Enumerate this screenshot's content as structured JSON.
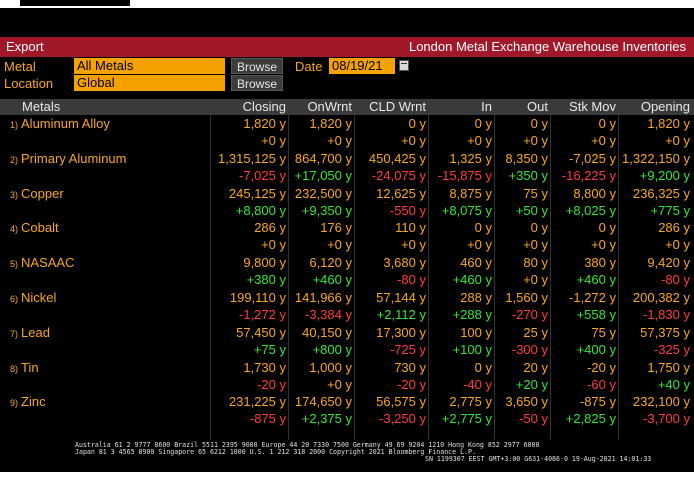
{
  "titlebar": {
    "export_label": "Export",
    "title": "London Metal Exchange Warehouse Inventories"
  },
  "filters": {
    "metal_label": "Metal",
    "metal_value": "All Metals",
    "location_label": "Location",
    "location_value": "Global",
    "browse_label": "Browse",
    "date_label": "Date",
    "date_value": "08/19/21"
  },
  "columns": {
    "metals": "Metals",
    "closing": "Closing",
    "onwrnt": "OnWrnt",
    "cld": "CLD Wrnt",
    "in": "In",
    "out": "Out",
    "stkmov": "Stk Mov",
    "opening": "Opening"
  },
  "rows": [
    {
      "num": "1)",
      "name": "Aluminum Alloy",
      "v": [
        "1,820 y",
        "1,820 y",
        "0 y",
        "0 y",
        "0 y",
        "0 y",
        "1,820 y"
      ],
      "c": [
        "+0 y",
        "+0 y",
        "+0 y",
        "+0 y",
        "+0 y",
        "+0 y",
        "+0 y"
      ],
      "cc": [
        "amber",
        "amber",
        "amber",
        "amber",
        "amber",
        "amber",
        "amber"
      ]
    },
    {
      "num": "2)",
      "name": "Primary Aluminum",
      "v": [
        "1,315,125 y",
        "864,700 y",
        "450,425 y",
        "1,325 y",
        "8,350 y",
        "-7,025 y",
        "1,322,150 y"
      ],
      "c": [
        "-7,025 y",
        "+17,050 y",
        "-24,075 y",
        "-15,875 y",
        "+350 y",
        "-16,225 y",
        "+9,200 y"
      ],
      "cc": [
        "red",
        "green",
        "red",
        "red",
        "green",
        "red",
        "green"
      ]
    },
    {
      "num": "3)",
      "name": "Copper",
      "v": [
        "245,125 y",
        "232,500 y",
        "12,625 y",
        "8,875 y",
        "75 y",
        "8,800 y",
        "236,325 y"
      ],
      "c": [
        "+8,800 y",
        "+9,350 y",
        "-550 y",
        "+8,075 y",
        "+50 y",
        "+8,025 y",
        "+775 y"
      ],
      "cc": [
        "green",
        "green",
        "red",
        "green",
        "green",
        "green",
        "green"
      ]
    },
    {
      "num": "4)",
      "name": "Cobalt",
      "v": [
        "286 y",
        "176 y",
        "110 y",
        "0 y",
        "0 y",
        "0 y",
        "286 y"
      ],
      "c": [
        "+0 y",
        "+0 y",
        "+0 y",
        "+0 y",
        "+0 y",
        "+0 y",
        "+0 y"
      ],
      "cc": [
        "amber",
        "amber",
        "amber",
        "amber",
        "amber",
        "amber",
        "amber"
      ]
    },
    {
      "num": "5)",
      "name": "NASAAC",
      "v": [
        "9,800 y",
        "6,120 y",
        "3,680 y",
        "460 y",
        "80 y",
        "380 y",
        "9,420 y"
      ],
      "c": [
        "+380 y",
        "+460 y",
        "-80 y",
        "+460 y",
        "+0 y",
        "+460 y",
        "-80 y"
      ],
      "cc": [
        "green",
        "green",
        "red",
        "green",
        "amber",
        "green",
        "red"
      ]
    },
    {
      "num": "6)",
      "name": "Nickel",
      "v": [
        "199,110 y",
        "141,966 y",
        "57,144 y",
        "288 y",
        "1,560 y",
        "-1,272 y",
        "200,382 y"
      ],
      "c": [
        "-1,272 y",
        "-3,384 y",
        "+2,112 y",
        "+288 y",
        "-270 y",
        "+558 y",
        "-1,830 y"
      ],
      "cc": [
        "red",
        "red",
        "green",
        "green",
        "red",
        "green",
        "red"
      ]
    },
    {
      "num": "7)",
      "name": "Lead",
      "v": [
        "57,450 y",
        "40,150 y",
        "17,300 y",
        "100 y",
        "25 y",
        "75 y",
        "57,375 y"
      ],
      "c": [
        "+75 y",
        "+800 y",
        "-725 y",
        "+100 y",
        "-300 y",
        "+400 y",
        "-325 y"
      ],
      "cc": [
        "green",
        "green",
        "red",
        "green",
        "red",
        "green",
        "red"
      ]
    },
    {
      "num": "8)",
      "name": "Tin",
      "v": [
        "1,730 y",
        "1,000 y",
        "730 y",
        "0 y",
        "20 y",
        "-20 y",
        "1,750 y"
      ],
      "c": [
        "-20 y",
        "+0 y",
        "-20 y",
        "-40 y",
        "+20 y",
        "-60 y",
        "+40 y"
      ],
      "cc": [
        "red",
        "amber",
        "red",
        "red",
        "green",
        "red",
        "green"
      ]
    },
    {
      "num": "9)",
      "name": "Zinc",
      "v": [
        "231,225 y",
        "174,650 y",
        "56,575 y",
        "2,775 y",
        "3,650 y",
        "-875 y",
        "232,100 y"
      ],
      "c": [
        "-875 y",
        "+2,375 y",
        "-3,250 y",
        "+2,775 y",
        "-50 y",
        "+2,825 y",
        "-3,700 y"
      ],
      "cc": [
        "red",
        "green",
        "red",
        "green",
        "red",
        "green",
        "red"
      ]
    }
  ],
  "footer": {
    "line1": "Australia 61 2 9777 8600 Brazil 5511 2395 9000 Europe 44 20 7330 7500 Germany 49 69 9204 1210 Hong Kong 852 2977 6000",
    "line2": "Japan 81 3 4565 8900         Singapore 65 6212 1000        U.S. 1 212 318 2000        Copyright 2021 Bloomberg Finance L.P.",
    "line3": "SN 1199307 EEST GMT+3:00 G631-4086-0 19-Aug-2021 14:01:33"
  },
  "colors": {
    "titlebar": "#a1182b",
    "amber": "#f5a623",
    "green": "#33e633",
    "red": "#ff3b3b",
    "field": "#f5a100"
  }
}
